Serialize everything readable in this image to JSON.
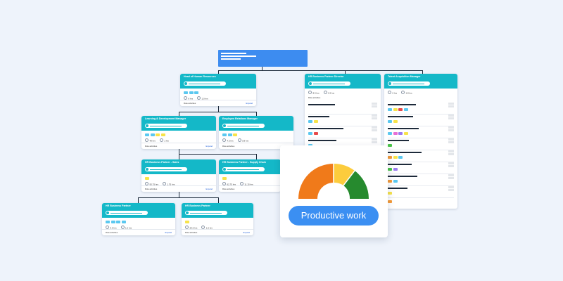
{
  "colors": {
    "background": "#eef3fb",
    "card_header": "#14b8c8",
    "top_box": "#3d8cf0",
    "pill": "#3b8ff2",
    "gauge_orange": "#f07a1a",
    "gauge_yellow": "#fccc3d",
    "gauge_green": "#268a2e",
    "chip_blue": "#5bc8f0",
    "chip_yellow": "#f7e34a",
    "chip_red": "#e64a4a",
    "chip_pink": "#e76fd4",
    "chip_orange": "#f59b39",
    "chip_green": "#49c449",
    "chip_purple": "#9b7bf0"
  },
  "cards": [
    {
      "id": "head-hr",
      "title": "Head of Human Resources",
      "metric1": "8 hrs",
      "metric2": "1.0 hrs",
      "footer_left": "Role activities",
      "footer_right": "Expand"
    },
    {
      "id": "ld-manager",
      "title": "Learning & Development Manager",
      "metric1": "48 hrs",
      "metric2": "1 hrs",
      "footer_left": "Role activities",
      "footer_right": "Expand"
    },
    {
      "id": "er-manager",
      "title": "Employee Relations Manager",
      "metric1": "4.5 hrs",
      "metric2": "3.8 hrs",
      "footer_left": "Role activities",
      "footer_right": "Expand"
    },
    {
      "id": "hrbp-sales",
      "title": "HR Business Partner - Sales",
      "metric1": "93.75 hrs",
      "metric2": "1.75 hrs",
      "footer_left": "Role activities",
      "footer_right": "Expand"
    },
    {
      "id": "hrbp-supply",
      "title": "HR Business Partner - Supply Chain",
      "metric1": "62.75 hrs",
      "metric2": "11.15 hrs",
      "footer_left": "Role activities",
      "footer_right": "Expand"
    },
    {
      "id": "hrbp-1",
      "title": "HR Business Partner",
      "metric1": "9.5 hrs",
      "metric2": "1.0 hrs",
      "footer_left": "Role activities",
      "footer_right": "Expand"
    },
    {
      "id": "hrbp-2",
      "title": "HR Business Partner",
      "metric1": "29.5 hrs",
      "metric2": "1.5 hrs",
      "footer_left": "Role activities",
      "footer_right": "Expand"
    }
  ],
  "big_cards": [
    {
      "id": "hrbp-director",
      "title": "HR Business Partner Director",
      "metric1": "8.5 hrs",
      "metric2": "1.5 hrs",
      "footer_left": "Role activities"
    },
    {
      "id": "talent-acq",
      "title": "Talent Acquisition Manager",
      "metric1": "6 hrs",
      "metric2": "1.8 hrs"
    }
  ],
  "gauge": {
    "label": "Productive work",
    "segments": [
      {
        "name": "orange",
        "share": 0.5
      },
      {
        "name": "yellow",
        "share": 0.2
      },
      {
        "name": "green",
        "share": 0.3
      }
    ]
  }
}
